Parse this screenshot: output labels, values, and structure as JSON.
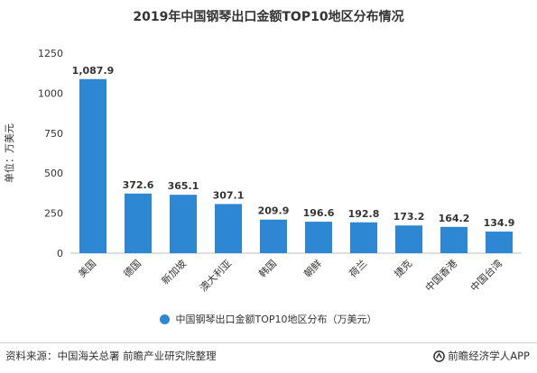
{
  "colors": {
    "bar": "#2e87d3",
    "axis": "#bfbfbf",
    "grid": "#e6e6e6",
    "text": "#333333"
  },
  "chart_data": {
    "type": "bar",
    "title": "2019年中国钢琴出口金额TOP10地区分布情况",
    "ylabel": "单位：万美元",
    "xlabel": "",
    "categories": [
      "美国",
      "德国",
      "新加坡",
      "澳大利亚",
      "韩国",
      "朝鲜",
      "荷兰",
      "捷克",
      "中国香港",
      "中国台湾"
    ],
    "series": [
      {
        "name": "中国钢琴出口金额TOP10地区分布（万美元）",
        "values": [
          1087.9,
          372.6,
          365.1,
          307.1,
          209.9,
          196.6,
          192.8,
          173.2,
          164.2,
          134.9
        ]
      }
    ],
    "data_labels": [
      "1,087.9",
      "372.6",
      "365.1",
      "307.1",
      "209.9",
      "196.6",
      "192.8",
      "173.2",
      "164.2",
      "134.9"
    ],
    "ylim": [
      0,
      1250
    ],
    "yticks": [
      0,
      250,
      500,
      750,
      1000,
      1250
    ],
    "ytick_labels": [
      "0",
      "250",
      "500",
      "750",
      "1000",
      "1250"
    ],
    "grid": false,
    "legend_position": "bottom"
  },
  "footer": {
    "source": "资料来源：中国海关总署 前瞻产业研究院整理",
    "brand": "前瞻经济学人APP",
    "brand_icon": "brand-logo-icon"
  }
}
